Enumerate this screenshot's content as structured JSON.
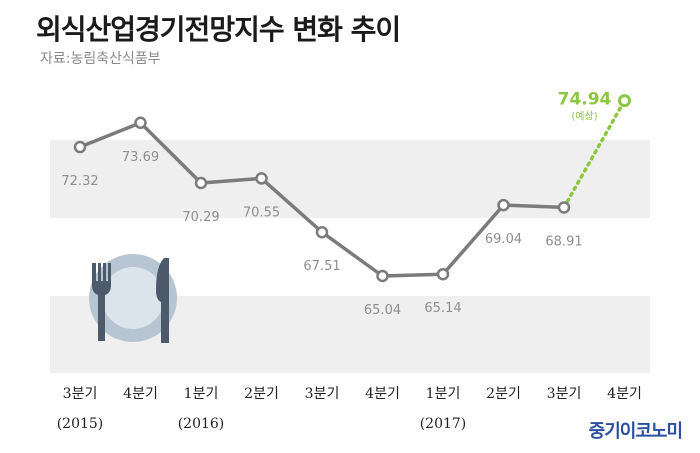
{
  "header": {
    "title": "외식산업경기전망지수 변화 추이",
    "source": "자료:농림축산식품부"
  },
  "brand": "중기이코노미",
  "colors": {
    "line": "#7b7b7b",
    "forecast": "#8dc63f",
    "band": "#efefef"
  },
  "chart_data": {
    "type": "line",
    "title": "외식산업경기전망지수 변화 추이",
    "categories": [
      "3분기",
      "4분기",
      "1분기",
      "2분기",
      "3분기",
      "4분기",
      "1분기",
      "2분기",
      "3분기",
      "4분기"
    ],
    "year_labels": [
      "(2015)",
      "",
      "(2016)",
      "",
      "",
      "",
      "(2017)",
      "",
      "",
      ""
    ],
    "values": [
      72.32,
      73.69,
      70.29,
      70.55,
      67.51,
      65.04,
      65.14,
      69.04,
      68.91,
      null
    ],
    "value_labels": [
      "72.32",
      "73.69",
      "70.29",
      "70.55",
      "67.51",
      "65.04",
      "65.14",
      "69.04",
      "68.91",
      ""
    ],
    "forecast": {
      "value": 74.94,
      "value_label": "74.94",
      "note": "(예상)"
    },
    "ylim": [
      60,
      76.5
    ],
    "grid": false,
    "icon": "plate-fork-knife-icon"
  }
}
